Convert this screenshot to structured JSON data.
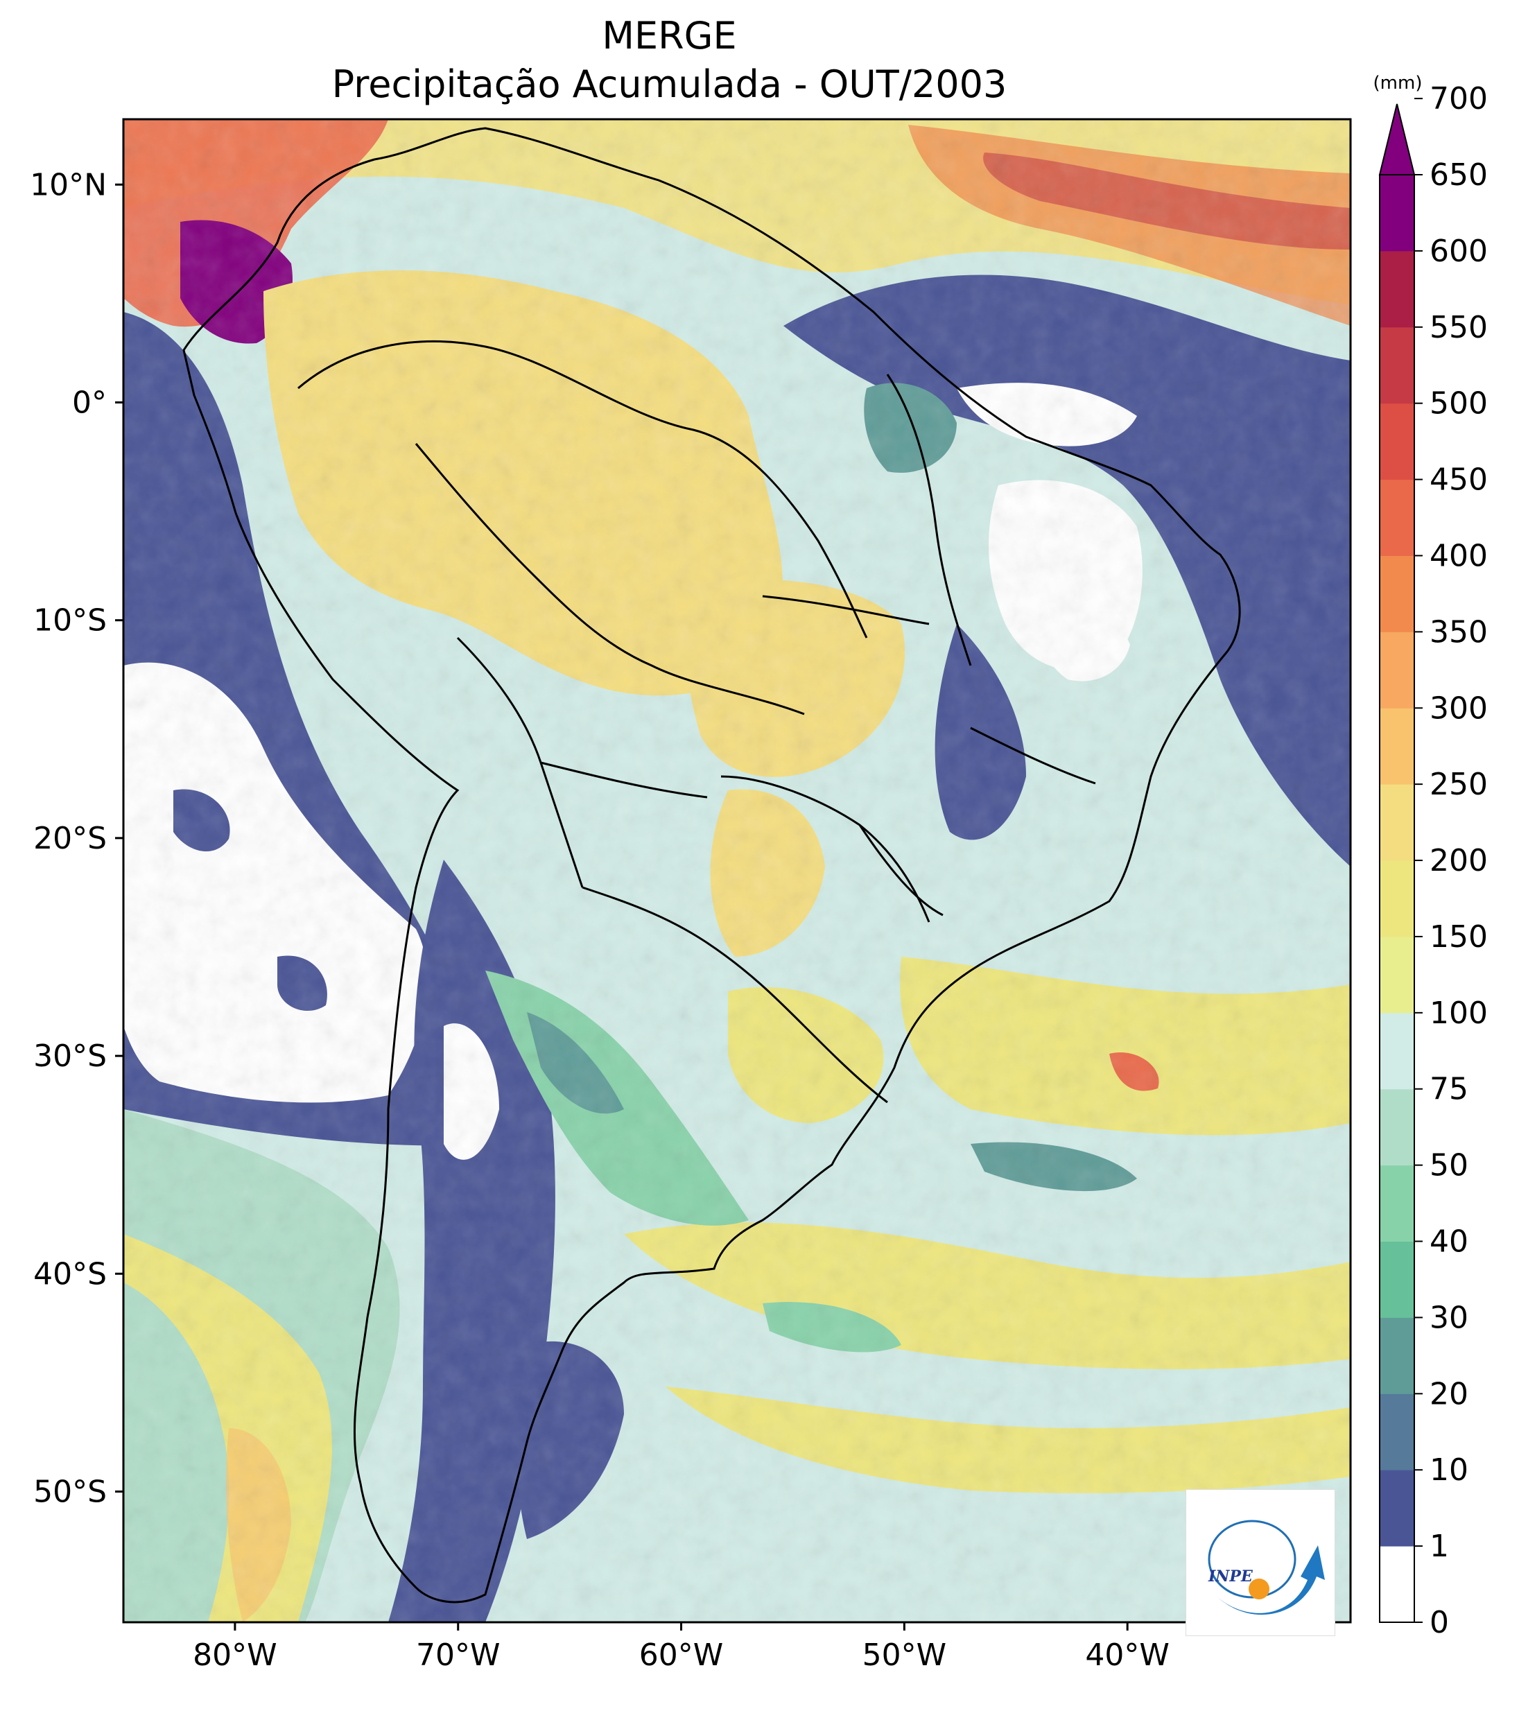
{
  "title": {
    "line1": "MERGE",
    "line2": "Precipitação Acumulada - OUT/2003"
  },
  "map": {
    "lon_range": [
      -85,
      -30
    ],
    "lat_range": [
      -56,
      13
    ],
    "x_ticks": [
      {
        "lon": -80,
        "label": "80°W"
      },
      {
        "lon": -70,
        "label": "70°W"
      },
      {
        "lon": -60,
        "label": "60°W"
      },
      {
        "lon": -50,
        "label": "50°W"
      },
      {
        "lon": -40,
        "label": "40°W"
      }
    ],
    "y_ticks": [
      {
        "lat": 10,
        "label": "10°N"
      },
      {
        "lat": 0,
        "label": "0°"
      },
      {
        "lat": -10,
        "label": "10°S"
      },
      {
        "lat": -20,
        "label": "20°S"
      },
      {
        "lat": -30,
        "label": "30°S"
      },
      {
        "lat": -40,
        "label": "40°S"
      },
      {
        "lat": -50,
        "label": "50°S"
      }
    ]
  },
  "colorbar": {
    "unit": "(mm)",
    "levels": [
      "0",
      "1",
      "10",
      "20",
      "30",
      "40",
      "50",
      "75",
      "100",
      "150",
      "200",
      "250",
      "300",
      "350",
      "400",
      "450",
      "500",
      "550",
      "600",
      "650",
      "700"
    ],
    "colors": [
      "#ffffff",
      "#4a5596",
      "#557a9a",
      "#5f9c98",
      "#66c09a",
      "#88d2aa",
      "#b0ddc8",
      "#d1ebe6",
      "#e8ee8e",
      "#ede67e",
      "#f4dd80",
      "#f9c36d",
      "#f8a860",
      "#f28a4e",
      "#e9694a",
      "#dd4f45",
      "#c53a44",
      "#ab1e46",
      "#82007e"
    ],
    "extend_color": "#82007e"
  },
  "logo": {
    "text": "INPE"
  }
}
